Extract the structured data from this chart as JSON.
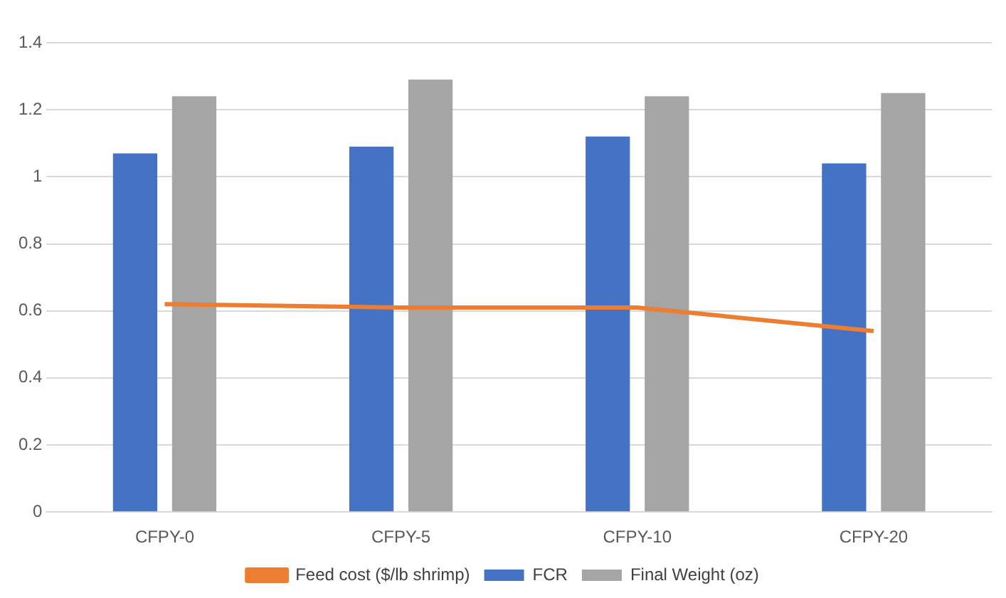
{
  "chart_data": {
    "type": "bar",
    "categories": [
      "CFPY-0",
      "CFPY-5",
      "CFPY-10",
      "CFPY-20"
    ],
    "series": [
      {
        "name": "FCR",
        "color": "#4472c4",
        "values": [
          1.07,
          1.09,
          1.12,
          1.04
        ]
      },
      {
        "name": "Final Weight (oz)",
        "color": "#a5a5a5",
        "values": [
          1.24,
          1.29,
          1.24,
          1.25
        ]
      },
      {
        "name": "Feed cost ($/lb shrimp)",
        "type": "line",
        "color": "#ed7d31",
        "values": [
          0.62,
          0.61,
          0.61,
          0.54
        ]
      }
    ],
    "ylim": [
      0,
      1.4
    ],
    "yticks": [
      0,
      0.2,
      0.4,
      0.6,
      0.8,
      1,
      1.2,
      1.4
    ],
    "grid": "y",
    "legend": "bottom",
    "marker": "none"
  }
}
